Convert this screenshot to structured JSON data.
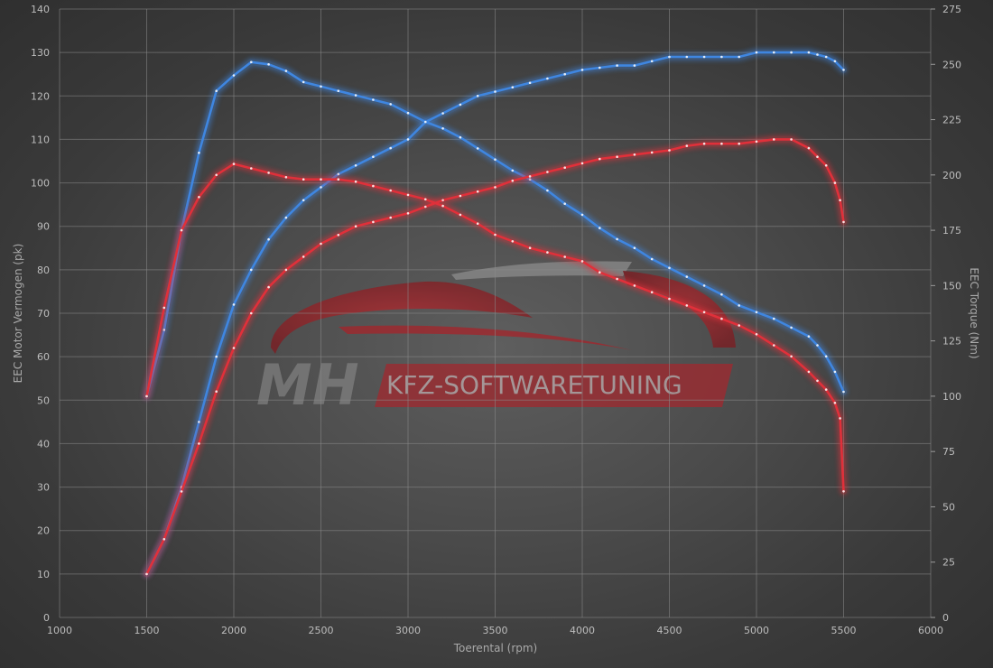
{
  "chart_data": {
    "type": "line",
    "xlabel": "Toerental (rpm)",
    "ylabel_left": "EEC Motor Vermogen (pk)",
    "ylabel_right": "EEC Torque (Nm)",
    "xlim": [
      1000,
      6000
    ],
    "ylim_left": [
      0,
      140
    ],
    "ylim_right": [
      0,
      275
    ],
    "x_ticks": [
      "1000",
      "1500",
      "2000",
      "2500",
      "3000",
      "3500",
      "4000",
      "4500",
      "5000",
      "5500",
      "6000"
    ],
    "y_left_ticks": [
      "0",
      "10",
      "20",
      "30",
      "40",
      "50",
      "60",
      "70",
      "80",
      "90",
      "100",
      "110",
      "120",
      "130",
      "140"
    ],
    "y_right_ticks": [
      "0",
      "25",
      "50",
      "75",
      "100",
      "125",
      "150",
      "175",
      "200",
      "225",
      "250",
      "275"
    ],
    "grid": true,
    "colors": {
      "tuned": "#3f86e0",
      "stock": "#e0303a"
    },
    "series": [
      {
        "axis": "left",
        "color": "tuned",
        "x": [
          1500,
          1600,
          1700,
          1800,
          1900,
          2000,
          2100,
          2200,
          2300,
          2400,
          2500,
          2600,
          2700,
          2800,
          2900,
          3000,
          3100,
          3200,
          3300,
          3400,
          3500,
          3600,
          3700,
          3800,
          3900,
          4000,
          4100,
          4200,
          4300,
          4400,
          4500,
          4600,
          4700,
          4800,
          4900,
          5000,
          5100,
          5200,
          5300,
          5350,
          5400,
          5450,
          5500
        ],
        "values": [
          10,
          18,
          30,
          45,
          60,
          72,
          80,
          87,
          92,
          96,
          99,
          102,
          104,
          106,
          108,
          110,
          114,
          116,
          118,
          120,
          121,
          122,
          123,
          124,
          125,
          126,
          126.5,
          127,
          127,
          128,
          129,
          129,
          129,
          129,
          129,
          130,
          130,
          130,
          130,
          129.5,
          129,
          128,
          126
        ]
      },
      {
        "axis": "right",
        "color": "tuned",
        "x": [
          1500,
          1600,
          1700,
          1800,
          1900,
          2000,
          2100,
          2200,
          2300,
          2400,
          2500,
          2600,
          2700,
          2800,
          2900,
          3000,
          3100,
          3200,
          3300,
          3400,
          3500,
          3600,
          3700,
          3800,
          3900,
          4000,
          4100,
          4200,
          4300,
          4400,
          4500,
          4600,
          4700,
          4800,
          4900,
          5000,
          5100,
          5200,
          5300,
          5350,
          5400,
          5450,
          5500
        ],
        "values": [
          100,
          130,
          175,
          210,
          238,
          245,
          251,
          250,
          247,
          242,
          240,
          238,
          236,
          234,
          232,
          228,
          224,
          221,
          217,
          212,
          207,
          202,
          198,
          193,
          187,
          182,
          176,
          171,
          167,
          162,
          158,
          154,
          150,
          146,
          141,
          138,
          135,
          131,
          127,
          123,
          118,
          111,
          102
        ]
      },
      {
        "axis": "left",
        "color": "stock",
        "x": [
          1500,
          1600,
          1700,
          1800,
          1900,
          2000,
          2100,
          2200,
          2300,
          2400,
          2500,
          2600,
          2700,
          2800,
          2900,
          3000,
          3100,
          3200,
          3300,
          3400,
          3500,
          3600,
          3700,
          3800,
          3900,
          4000,
          4100,
          4200,
          4300,
          4400,
          4500,
          4600,
          4700,
          4800,
          4900,
          5000,
          5100,
          5200,
          5300,
          5350,
          5400,
          5450,
          5480,
          5500
        ],
        "values": [
          10,
          18,
          29,
          40,
          52,
          62,
          70,
          76,
          80,
          83,
          86,
          88,
          90,
          91,
          92,
          93,
          94.5,
          96,
          97,
          98,
          99,
          100.5,
          101.5,
          102.5,
          103.5,
          104.5,
          105.5,
          106,
          106.5,
          107,
          107.5,
          108.5,
          109,
          109,
          109,
          109.5,
          110,
          110,
          108,
          106,
          104,
          100,
          96,
          91
        ]
      },
      {
        "axis": "right",
        "color": "stock",
        "x": [
          1500,
          1600,
          1700,
          1800,
          1900,
          2000,
          2100,
          2200,
          2300,
          2400,
          2500,
          2600,
          2700,
          2800,
          2900,
          3000,
          3100,
          3200,
          3300,
          3400,
          3500,
          3600,
          3700,
          3800,
          3900,
          4000,
          4100,
          4200,
          4300,
          4400,
          4500,
          4600,
          4700,
          4800,
          4900,
          5000,
          5100,
          5200,
          5300,
          5350,
          5400,
          5450,
          5480,
          5500
        ],
        "values": [
          100,
          140,
          175,
          190,
          200,
          205,
          203,
          201,
          199,
          198,
          198,
          198,
          197,
          195,
          193,
          191,
          189,
          186,
          182,
          178,
          173,
          170,
          167,
          165,
          163,
          161,
          156,
          153,
          150,
          147,
          144,
          141,
          138,
          135,
          132,
          128,
          123,
          118,
          111,
          107,
          103,
          97,
          90,
          57
        ]
      }
    ]
  },
  "watermark": {
    "left": "MH",
    "right": "KFZ-SOFTWARETUNING"
  }
}
